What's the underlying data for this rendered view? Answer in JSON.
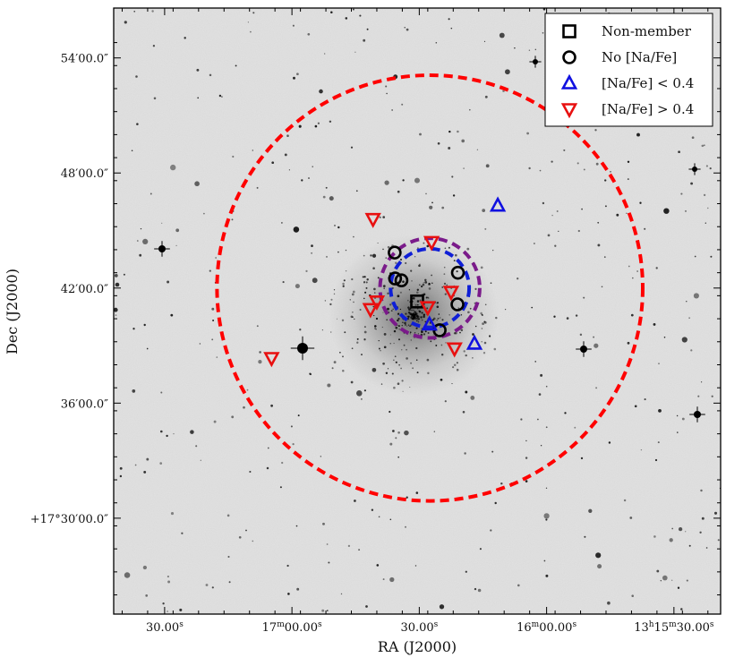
{
  "chart_data": {
    "type": "scatter",
    "background": "grayscale-sky-image",
    "xlabel": "RA (J2000)",
    "ylabel": "Dec (J2000)",
    "x_ticks": [
      {
        "label": "30.00",
        "sup": "s",
        "ra_sec": 90
      },
      {
        "label": "17",
        "sup": "m",
        "label2": "00.00",
        "sup2": "s",
        "ra_sec": 60
      },
      {
        "label": "30.00",
        "sup": "s",
        "ra_sec": 30
      },
      {
        "label": "16",
        "sup": "m",
        "label2": "00.00",
        "sup2": "s",
        "ra_sec": 0
      },
      {
        "label": "13",
        "sup": "h",
        "label2": "15",
        "sup2": "m",
        "label3": "30.00",
        "sup3": "s",
        "ra_sec": -30
      }
    ],
    "y_ticks": [
      {
        "label": "54′00.0″",
        "dec_arcmin": 54
      },
      {
        "label": "48′00.0″",
        "dec_arcmin": 48
      },
      {
        "label": "42′00.0″",
        "dec_arcmin": 42
      },
      {
        "label": "36′00.0″",
        "dec_arcmin": 36
      },
      {
        "label": "+17°30′00.0″",
        "dec_arcmin": 30
      }
    ],
    "xlim": [
      102.0,
      -41.0
    ],
    "ylim": [
      25.0,
      56.6
    ],
    "legend": {
      "position": "top-right",
      "entries": [
        {
          "label": "Non-member",
          "marker": "square",
          "color": "#000000"
        },
        {
          "label": "No [Na/Fe]",
          "marker": "circle",
          "color": "#000000"
        },
        {
          "label": "[Na/Fe] < 0.4",
          "marker": "triangle-up",
          "color": "#1010e0"
        },
        {
          "label": "[Na/Fe] > 0.4",
          "marker": "triangle-down",
          "color": "#e81010"
        }
      ]
    },
    "rings": [
      {
        "name": "tidal-radius-circle",
        "center_ra_sec": 27.5,
        "center_dec_arcmin": 42.0,
        "radius_arcmin": 11.1,
        "color": "#ff0000",
        "dash": "dashed"
      },
      {
        "name": "purple-circle",
        "center_ra_sec": 27.5,
        "center_dec_arcmin": 42.0,
        "radius_arcmin": 2.6,
        "color": "#7a1a8a",
        "dash": "dashed"
      },
      {
        "name": "blue-circle",
        "center_ra_sec": 27.5,
        "center_dec_arcmin": 42.0,
        "radius_arcmin": 2.05,
        "color": "#0f1fd6",
        "dash": "dashed"
      }
    ],
    "series": [
      {
        "name": "Non-member",
        "marker": "square",
        "color": "#000000",
        "points": [
          [
            30.5,
            41.3
          ]
        ]
      },
      {
        "name": "No [Na/Fe]",
        "marker": "circle",
        "color": "#000000",
        "points": [
          [
            35.8,
            43.85
          ],
          [
            35.7,
            42.5
          ],
          [
            34.2,
            42.4
          ],
          [
            20.9,
            42.8
          ],
          [
            21.0,
            41.15
          ],
          [
            25.2,
            39.8
          ]
        ]
      },
      {
        "name": "[Na/Fe] < 0.4",
        "marker": "triangle-up",
        "color": "#1010e0",
        "points": [
          [
            11.5,
            46.3
          ],
          [
            27.6,
            40.1
          ],
          [
            17.0,
            39.1
          ]
        ]
      },
      {
        "name": "[Na/Fe] > 0.4",
        "marker": "triangle-down",
        "color": "#e81010",
        "points": [
          [
            40.9,
            45.6
          ],
          [
            27.1,
            44.4
          ],
          [
            22.5,
            41.8
          ],
          [
            40.0,
            41.3
          ],
          [
            41.5,
            40.9
          ],
          [
            28.0,
            41.0
          ],
          [
            21.7,
            38.85
          ],
          [
            64.8,
            38.35
          ]
        ]
      }
    ]
  }
}
